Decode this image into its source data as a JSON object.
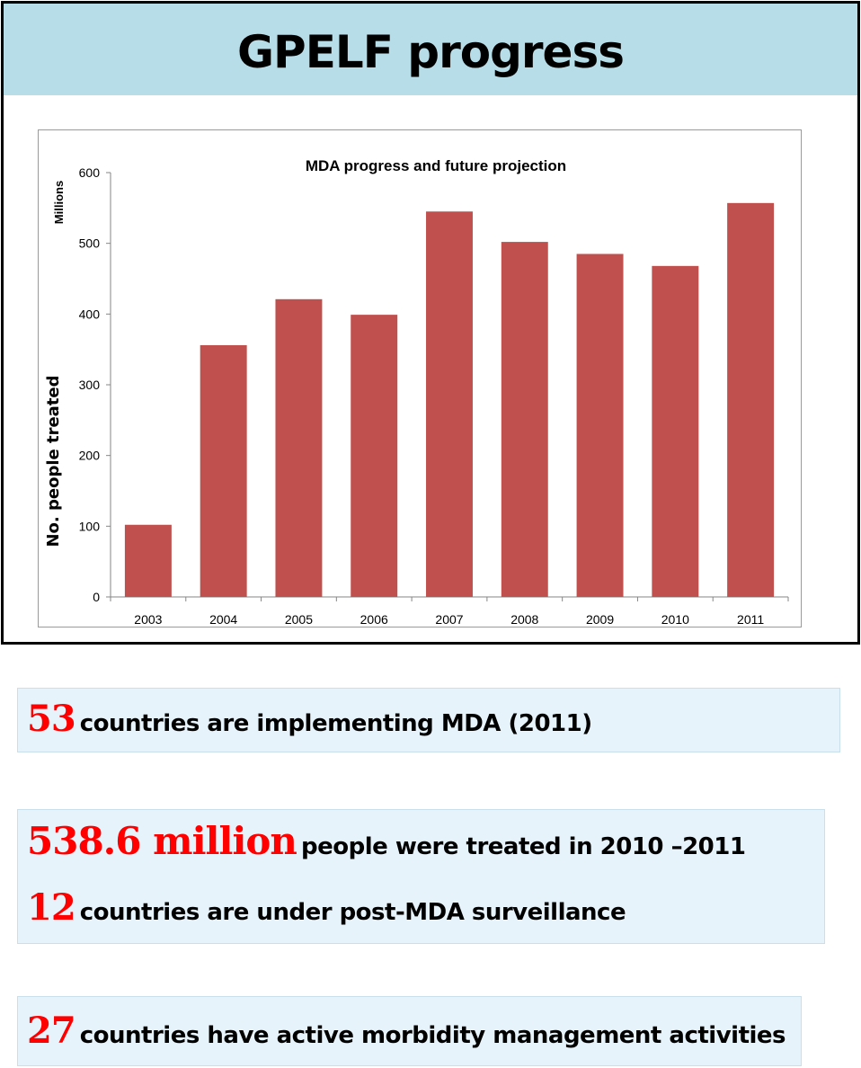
{
  "header": {
    "title": "GPELF progress"
  },
  "chart_data": {
    "type": "bar",
    "title": "MDA progress and future projection",
    "xlabel": "",
    "ylabel": "No. people treated",
    "y_unit": "Millions",
    "ylim": [
      0,
      600
    ],
    "yticks": [
      0,
      100,
      200,
      300,
      400,
      500,
      600
    ],
    "categories": [
      "2003",
      "2004",
      "2005",
      "2006",
      "2007",
      "2008",
      "2009",
      "2010",
      "2011"
    ],
    "values": [
      102,
      356,
      421,
      399,
      545,
      502,
      485,
      468,
      557
    ],
    "bar_color": "#c0504d",
    "grid": false,
    "legend": "none"
  },
  "stats": [
    {
      "lines": [
        {
          "number": "53",
          "text": "countries are implementing MDA (2011)"
        }
      ]
    },
    {
      "lines": [
        {
          "number": "538.6 million",
          "text": "people were treated in 2010 –2011"
        },
        {
          "number": "12",
          "text": "countries are under post-MDA surveillance"
        }
      ]
    },
    {
      "lines": [
        {
          "number": "27",
          "text": "countries have active morbidity management activities"
        }
      ]
    }
  ]
}
